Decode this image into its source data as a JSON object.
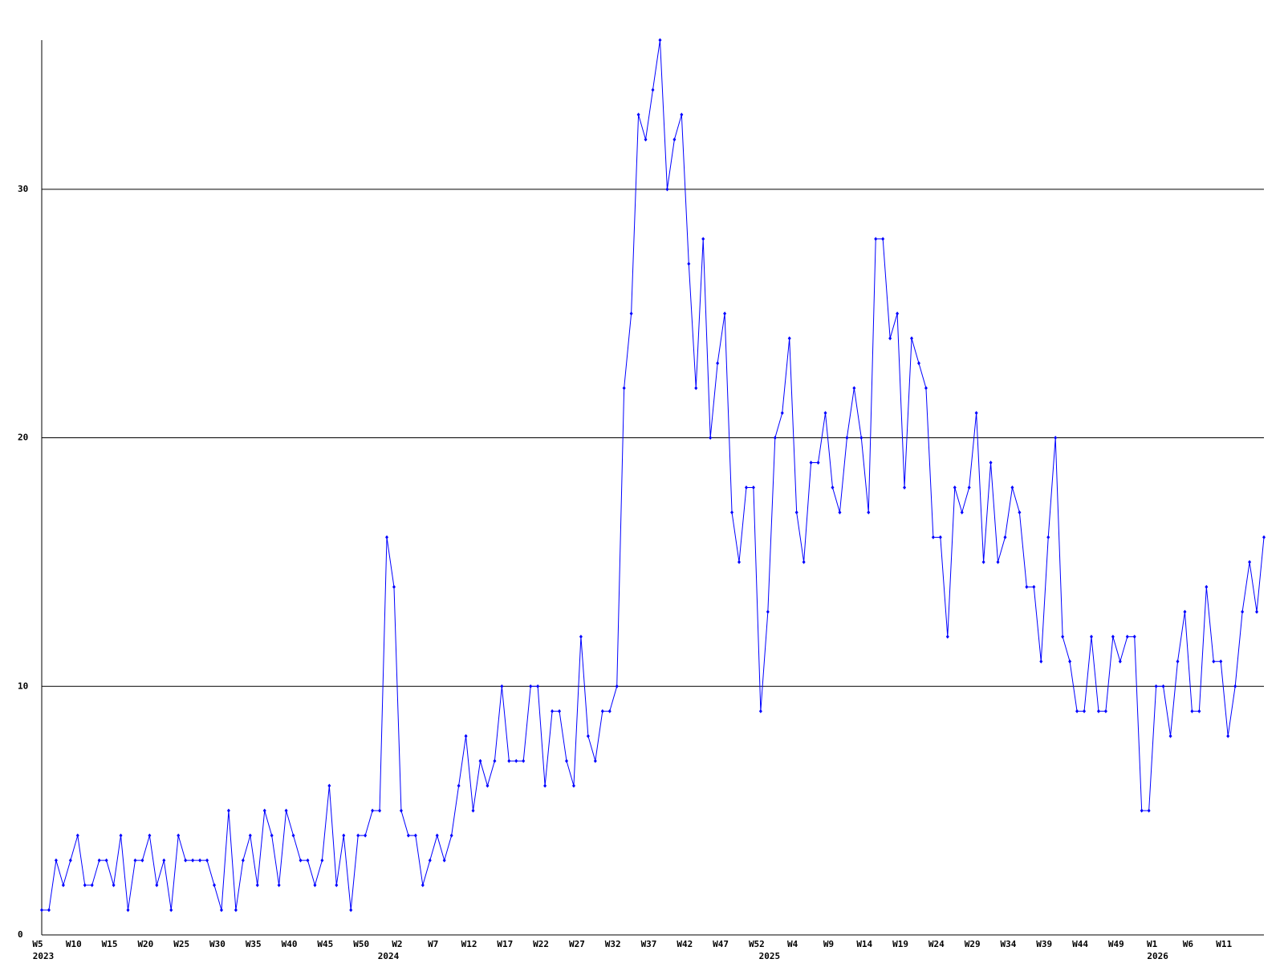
{
  "chart_data": {
    "type": "line",
    "categories": [
      "W5",
      null,
      null,
      null,
      null,
      "W10",
      null,
      null,
      null,
      null,
      "W15",
      null,
      null,
      null,
      null,
      "W20",
      null,
      null,
      null,
      null,
      "W25",
      null,
      null,
      null,
      null,
      "W30",
      null,
      null,
      null,
      null,
      "W35",
      null,
      null,
      null,
      null,
      "W40",
      null,
      null,
      null,
      null,
      "W45",
      null,
      null,
      null,
      null,
      "W50",
      null,
      null,
      null,
      null,
      "W2",
      null,
      null,
      null,
      null,
      "W7",
      null,
      null,
      null,
      null,
      "W12",
      null,
      null,
      null,
      null,
      "W17",
      null,
      null,
      null,
      null,
      "W22",
      null,
      null,
      null,
      null,
      "W27",
      null,
      null,
      null,
      null,
      "W32",
      null,
      null,
      null,
      null,
      "W37",
      null,
      null,
      null,
      null,
      "W42",
      null,
      null,
      null,
      null,
      "W47",
      null,
      null,
      null,
      null,
      "W52",
      null,
      null,
      null,
      null,
      "W4",
      null,
      null,
      null,
      null,
      "W9",
      null,
      null,
      null,
      null,
      "W14",
      null,
      null,
      null,
      null,
      "W19",
      null,
      null,
      null,
      null,
      "W24",
      null,
      null,
      null,
      null,
      "W29",
      null,
      null,
      null,
      null,
      "W34",
      null,
      null,
      null,
      null,
      "W39",
      null,
      null,
      null,
      null,
      "W44",
      null,
      null,
      null,
      null,
      "W49",
      null,
      null,
      null,
      null,
      "W1",
      null,
      null,
      null,
      null,
      "W6",
      null,
      null,
      null,
      null,
      "W11",
      null,
      null,
      null,
      null,
      null
    ],
    "year_labels": [
      "2023",
      null,
      null,
      null,
      null,
      null,
      null,
      null,
      null,
      null,
      null,
      null,
      null,
      null,
      null,
      null,
      null,
      null,
      null,
      null,
      null,
      null,
      null,
      null,
      null,
      null,
      null,
      null,
      null,
      null,
      null,
      null,
      null,
      null,
      null,
      null,
      null,
      null,
      null,
      null,
      null,
      null,
      null,
      null,
      null,
      null,
      null,
      null,
      "2024",
      null,
      null,
      null,
      null,
      null,
      null,
      null,
      null,
      null,
      null,
      null,
      null,
      null,
      null,
      null,
      null,
      null,
      null,
      null,
      null,
      null,
      null,
      null,
      null,
      null,
      null,
      null,
      null,
      null,
      null,
      null,
      null,
      null,
      null,
      null,
      null,
      null,
      null,
      null,
      null,
      null,
      null,
      null,
      null,
      null,
      null,
      null,
      null,
      null,
      null,
      null,
      null,
      "2025",
      null,
      null,
      null,
      null,
      null,
      null,
      null,
      null,
      null,
      null,
      null,
      null,
      null,
      null,
      null,
      null,
      null,
      null,
      null,
      null,
      null,
      null,
      null,
      null,
      null,
      null,
      null,
      null,
      null,
      null,
      null,
      null,
      null,
      null,
      null,
      null,
      null,
      null,
      null,
      null,
      null,
      null,
      null,
      null,
      null,
      null,
      null,
      null,
      null,
      null,
      null,
      null,
      null,
      "2026",
      null,
      null,
      null,
      null,
      null,
      null,
      null,
      null,
      null,
      null,
      null,
      null,
      null,
      null,
      null
    ],
    "series": [
      {
        "color": "#0000ff",
        "values": [
          1,
          1,
          3,
          2,
          3,
          4,
          2,
          2,
          3,
          3,
          2,
          4,
          1,
          3,
          3,
          4,
          2,
          3,
          1,
          4,
          3,
          3,
          3,
          3,
          2,
          1,
          5,
          1,
          3,
          4,
          2,
          5,
          4,
          2,
          5,
          4,
          3,
          3,
          2,
          3,
          6,
          2,
          4,
          1,
          4,
          4,
          5,
          5,
          16,
          14,
          5,
          4,
          4,
          2,
          3,
          4,
          3,
          4,
          6,
          8,
          5,
          7,
          6,
          7,
          10,
          7,
          7,
          7,
          10,
          10,
          6,
          9,
          9,
          7,
          6,
          12,
          8,
          7,
          9,
          9,
          10,
          22,
          25,
          33,
          32,
          34,
          36,
          30,
          32,
          33,
          27,
          22,
          28,
          20,
          23,
          25,
          17,
          15,
          18,
          18,
          9,
          13,
          20,
          21,
          24,
          17,
          15,
          19,
          19,
          21,
          18,
          17,
          20,
          22,
          20,
          17,
          28,
          28,
          24,
          25,
          18,
          24,
          23,
          22,
          16,
          16,
          12,
          18,
          17,
          18,
          21,
          15,
          19,
          15,
          16,
          18,
          17,
          14,
          14,
          11,
          16,
          20,
          12,
          11,
          9,
          9,
          12,
          9,
          9,
          12,
          11,
          12,
          12,
          5,
          5,
          10,
          10,
          8,
          11,
          13,
          9,
          9,
          14,
          11,
          11,
          8,
          10,
          13,
          15,
          13,
          16
        ]
      }
    ],
    "ylim": [
      0,
      36
    ],
    "yticks": [
      0,
      10,
      20,
      30
    ],
    "grid": true
  }
}
